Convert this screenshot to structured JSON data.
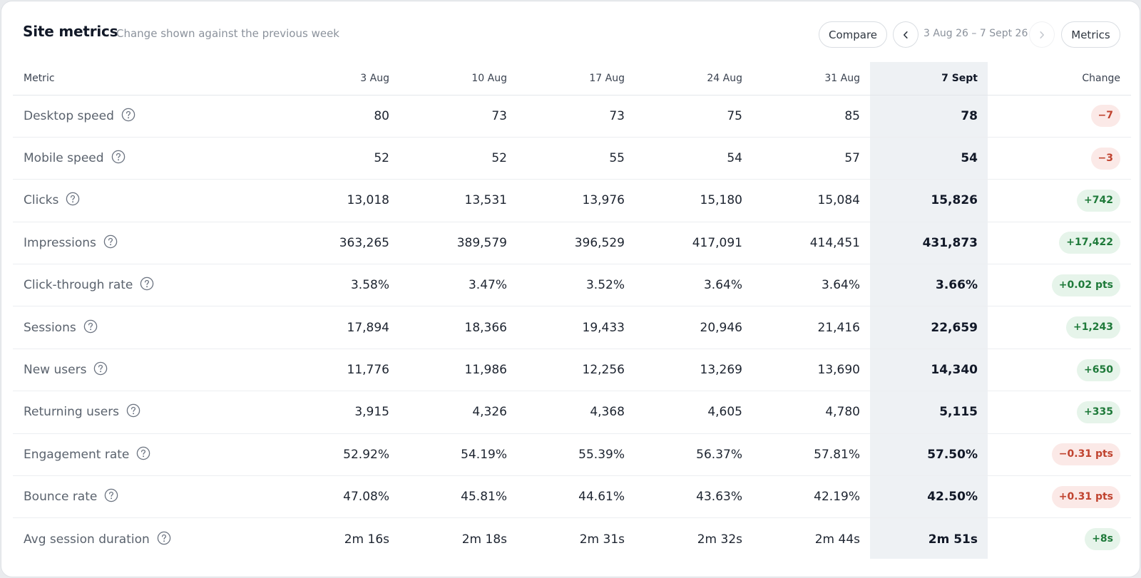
{
  "header": {
    "title": "Site metrics",
    "subtitle": "Change shown against the previous week",
    "compare_label": "Compare",
    "range_label": "3 Aug 26 – 7 Sept 26",
    "metrics_label": "Metrics"
  },
  "table": {
    "columns": [
      "Metric",
      "3 Aug",
      "10 Aug",
      "17 Aug",
      "24 Aug",
      "31 Aug",
      "7 Sept",
      "Change"
    ],
    "rows": [
      {
        "metric": "Desktop speed",
        "values": [
          "80",
          "73",
          "73",
          "75",
          "85",
          "78"
        ],
        "change": "−7",
        "change_tone": "neg"
      },
      {
        "metric": "Mobile speed",
        "values": [
          "52",
          "52",
          "55",
          "54",
          "57",
          "54"
        ],
        "change": "−3",
        "change_tone": "neg"
      },
      {
        "metric": "Clicks",
        "values": [
          "13,018",
          "13,531",
          "13,976",
          "15,180",
          "15,084",
          "15,826"
        ],
        "change": "+742",
        "change_tone": "pos"
      },
      {
        "metric": "Impressions",
        "values": [
          "363,265",
          "389,579",
          "396,529",
          "417,091",
          "414,451",
          "431,873"
        ],
        "change": "+17,422",
        "change_tone": "pos"
      },
      {
        "metric": "Click-through rate",
        "values": [
          "3.58%",
          "3.47%",
          "3.52%",
          "3.64%",
          "3.64%",
          "3.66%"
        ],
        "change": "+0.02 pts",
        "change_tone": "pos"
      },
      {
        "metric": "Sessions",
        "values": [
          "17,894",
          "18,366",
          "19,433",
          "20,946",
          "21,416",
          "22,659"
        ],
        "change": "+1,243",
        "change_tone": "pos"
      },
      {
        "metric": "New users",
        "values": [
          "11,776",
          "11,986",
          "12,256",
          "13,269",
          "13,690",
          "14,340"
        ],
        "change": "+650",
        "change_tone": "pos"
      },
      {
        "metric": "Returning users",
        "values": [
          "3,915",
          "4,326",
          "4,368",
          "4,605",
          "4,780",
          "5,115"
        ],
        "change": "+335",
        "change_tone": "pos"
      },
      {
        "metric": "Engagement rate",
        "values": [
          "52.92%",
          "54.19%",
          "55.39%",
          "56.37%",
          "57.81%",
          "57.50%"
        ],
        "change": "−0.31 pts",
        "change_tone": "neg"
      },
      {
        "metric": "Bounce rate",
        "values": [
          "47.08%",
          "45.81%",
          "44.61%",
          "43.63%",
          "42.19%",
          "42.50%"
        ],
        "change": "+0.31 pts",
        "change_tone": "neg"
      },
      {
        "metric": "Avg session duration",
        "values": [
          "2m 16s",
          "2m 18s",
          "2m 31s",
          "2m 32s",
          "2m 44s",
          "2m 51s"
        ],
        "change": "+8s",
        "change_tone": "pos"
      }
    ]
  },
  "icons": {
    "help": "question-circle-icon",
    "prev": "chevron-left-icon",
    "next": "chevron-right-icon"
  },
  "colors": {
    "negative_text": "#c0432f",
    "negative_bg": "#fbe9e7",
    "positive_text": "#1f7a3a",
    "positive_bg": "#e6f4ea",
    "current_column_bg": "#eef1f4"
  }
}
